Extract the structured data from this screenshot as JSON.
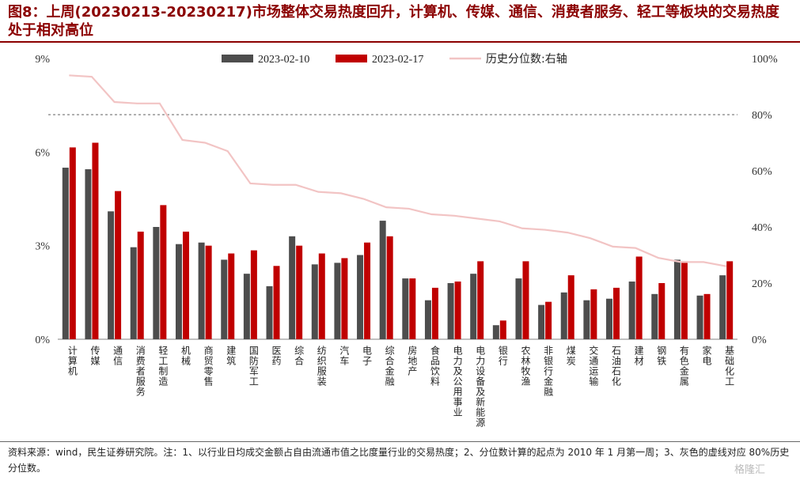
{
  "title": "图8：上周(20230213-20230217)市场整体交易热度回升，计算机、传媒、通信、消费者服务、轻工等板块的交易热度处于相对高位",
  "source": "资料来源：wind，民生证券研究院。注：1、以行业日均成交金额占自由流通市值之比度量行业的交易热度；2、分位数计算的起点为 2010 年 1 月第一周；3、灰色的虚线对应 80%历史分位数。",
  "watermark": "格隆汇",
  "colors": {
    "series1": "#4d4d4d",
    "series2": "#c00000",
    "line": "#f2c4c4",
    "dashed": "#808080",
    "title": "#8b0000"
  },
  "chart_data": {
    "type": "bar",
    "categories": [
      "计算机",
      "传媒",
      "通信",
      "消费者服务",
      "轻工制造",
      "机械",
      "商贸零售",
      "建筑",
      "国防军工",
      "医药",
      "综合",
      "纺织服装",
      "汽车",
      "电子",
      "综合金融",
      "房地产",
      "食品饮料",
      "电力及公用事业",
      "电力设备及新能源",
      "银行",
      "农林牧渔",
      "非银行金融",
      "煤炭",
      "交通运输",
      "石油石化",
      "建材",
      "钢铁",
      "有色金属",
      "家电",
      "基础化工"
    ],
    "series": [
      {
        "name": "2023-02-10",
        "type": "bar",
        "axis": "left",
        "values": [
          5.5,
          5.45,
          4.1,
          2.95,
          3.6,
          3.05,
          3.1,
          2.55,
          2.1,
          1.7,
          3.3,
          2.4,
          2.45,
          2.7,
          3.8,
          1.95,
          1.25,
          1.8,
          2.1,
          0.45,
          1.95,
          1.1,
          1.5,
          1.25,
          1.3,
          1.85,
          1.45,
          2.55,
          1.4,
          2.05
        ]
      },
      {
        "name": "2023-02-17",
        "type": "bar",
        "axis": "left",
        "values": [
          6.15,
          6.3,
          4.75,
          3.45,
          4.3,
          3.45,
          3.0,
          2.75,
          2.85,
          2.35,
          3.0,
          2.75,
          2.6,
          3.1,
          3.3,
          1.95,
          1.65,
          1.85,
          2.5,
          0.6,
          2.5,
          1.2,
          2.05,
          1.6,
          1.65,
          2.65,
          1.8,
          2.5,
          1.45,
          2.5
        ]
      },
      {
        "name": "历史分位数:右轴",
        "type": "line",
        "axis": "right",
        "values": [
          94,
          93.5,
          84.5,
          84,
          84,
          71,
          70,
          67,
          55.5,
          55,
          55,
          52.5,
          52,
          50,
          47,
          46.5,
          44.5,
          44,
          43,
          42,
          39.5,
          39,
          38,
          36,
          33,
          32.5,
          29,
          27.5,
          27.5,
          26
        ]
      }
    ],
    "ylim_left": [
      0,
      9
    ],
    "yticks_left": [
      "0%",
      "3%",
      "6%",
      "9%"
    ],
    "ylim_right": [
      0,
      100
    ],
    "yticks_right": [
      "0%",
      "20%",
      "40%",
      "60%",
      "80%",
      "100%"
    ],
    "reference_line": {
      "axis": "right",
      "value": 80,
      "style": "dashed"
    },
    "legend": "top",
    "grid": false
  }
}
